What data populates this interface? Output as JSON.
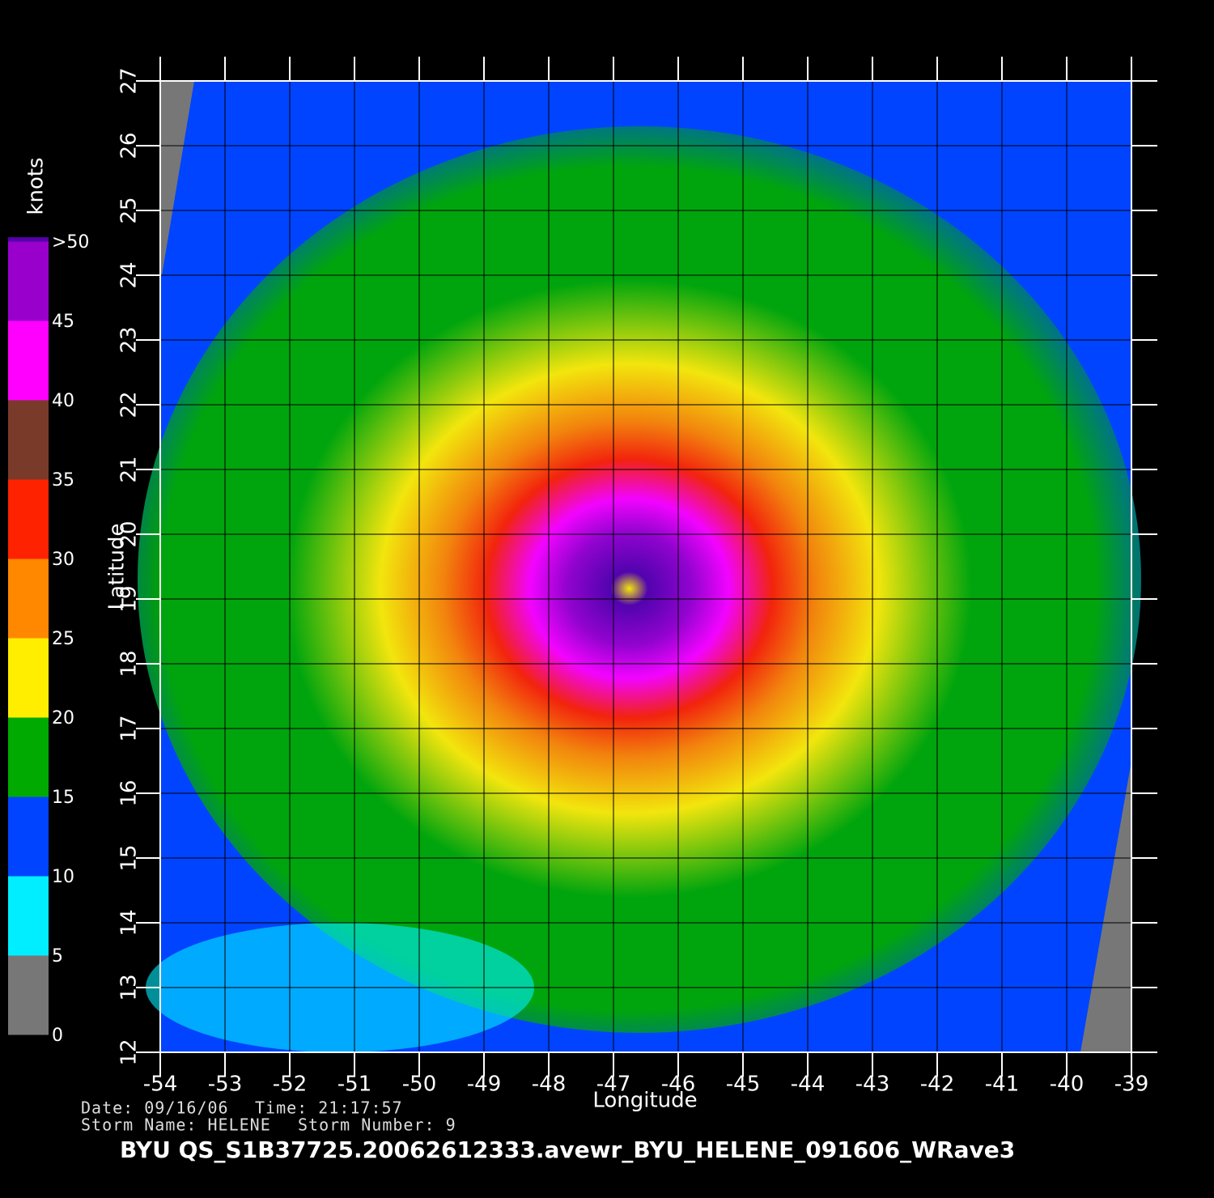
{
  "chart_data": {
    "type": "wind-map",
    "xlabel": "Longitude",
    "ylabel": "Latitude",
    "xlim": [
      -54,
      -39
    ],
    "xticks": [
      -54,
      -53,
      -52,
      -51,
      -50,
      -49,
      -48,
      -47,
      -46,
      -45,
      -44,
      -43,
      -42,
      -41,
      -40,
      -39
    ],
    "ylim": [
      12,
      27
    ],
    "yticks": [
      12,
      13,
      14,
      15,
      16,
      17,
      18,
      19,
      20,
      21,
      22,
      23,
      24,
      25,
      26,
      27
    ],
    "grid": true,
    "colorbar": {
      "label": "knots",
      "ticks": [
        0,
        5,
        10,
        15,
        20,
        25,
        30,
        35,
        40,
        45,
        {
          "value": 50,
          "label": ">50"
        }
      ],
      "colors": [
        "#777777",
        "#00eeff",
        "#0044ff",
        "#00aa00",
        "#ffee00",
        "#ff8800",
        "#ff2200",
        "#7a3a2a",
        "#ff00ff",
        "#9900cc",
        "#5500aa"
      ]
    },
    "footer": {
      "date": "Date: 09/16/06",
      "time": "Time: 21:17:57",
      "storm_name": "Storm Name: HELENE",
      "storm_number": "Storm Number: 9",
      "file": "BYU  QS_S1B37725.20062612333.avewr_BYU_HELENE_091606_WRave3"
    }
  }
}
